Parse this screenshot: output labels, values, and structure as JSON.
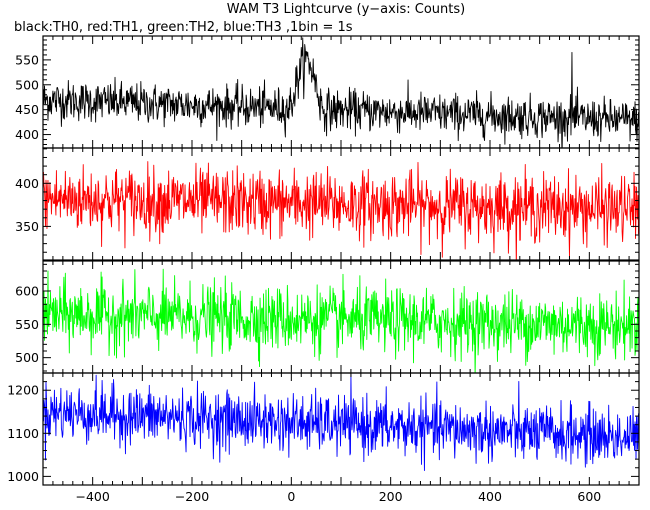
{
  "chart_data": {
    "type": "line",
    "title": "WAM T3 Lightcurve (y−axis: Counts)",
    "subtitle": "black:TH0, red:TH1, green:TH2, blue:TH3 ,1bin = 1s",
    "xlim": [
      -500,
      700
    ],
    "x_ticks": [
      -400,
      -200,
      0,
      200,
      400,
      600
    ],
    "x_tick_labels": [
      "−400",
      "−200",
      "0",
      "200",
      "400",
      "600"
    ],
    "bin_seconds": 1,
    "grid": false,
    "panels": [
      {
        "series_name": "TH0",
        "color": "#000000",
        "ylim": [
          373,
          598
        ],
        "y_ticks": [
          400,
          450,
          500,
          550
        ],
        "y_tick_labels": [
          "400",
          "450",
          "500",
          "550"
        ],
        "baseline_start": 470,
        "baseline_end": 428,
        "noise_sigma": 20,
        "features": [
          {
            "type": "peak",
            "x_start": -5,
            "x_peak": 30,
            "x_end": 65,
            "peak_value": 550
          },
          {
            "type": "spike",
            "x": 565,
            "value": 565
          }
        ]
      },
      {
        "series_name": "TH1",
        "color": "#ff0000",
        "ylim": [
          311,
          441
        ],
        "y_ticks": [
          350,
          400
        ],
        "y_tick_labels": [
          "350",
          "400"
        ],
        "baseline_start": 382,
        "baseline_end": 370,
        "noise_sigma": 19,
        "features": []
      },
      {
        "series_name": "TH2",
        "color": "#00ff00",
        "ylim": [
          477,
          645
        ],
        "y_ticks": [
          500,
          550,
          600
        ],
        "y_tick_labels": [
          "500",
          "550",
          "600"
        ],
        "baseline_start": 565,
        "baseline_end": 548,
        "noise_sigma": 24,
        "features": []
      },
      {
        "series_name": "TH3",
        "color": "#0000ff",
        "ylim": [
          980,
          1240
        ],
        "y_ticks": [
          1000,
          1100,
          1200
        ],
        "y_tick_labels": [
          "1000",
          "1100",
          "1200"
        ],
        "baseline_start": 1150,
        "baseline_end": 1090,
        "noise_sigma": 33,
        "features": []
      }
    ]
  }
}
